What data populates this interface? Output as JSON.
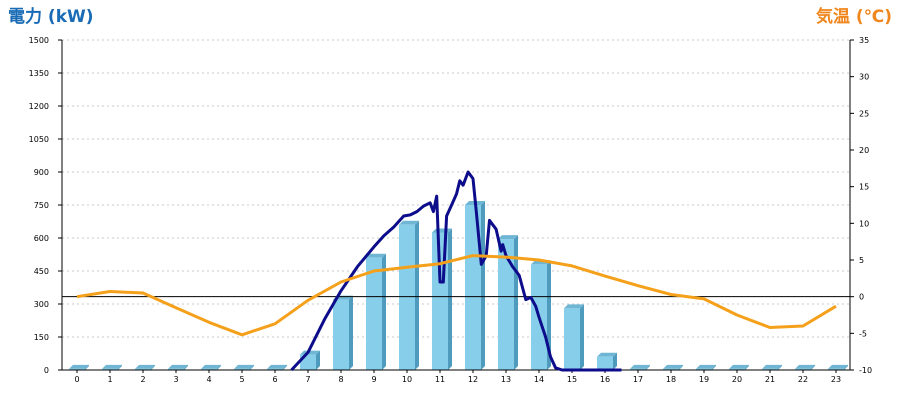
{
  "chart_data": {
    "type": "bar+line",
    "title": "",
    "left_axis": {
      "label": "電力 (kW)",
      "range": [
        0,
        1500
      ],
      "ticks": [
        0,
        150,
        300,
        450,
        600,
        750,
        900,
        1050,
        1200,
        1350,
        1500
      ]
    },
    "right_axis": {
      "label": "気温 (℃)",
      "range": [
        -10,
        35
      ],
      "ticks": [
        -10,
        -5,
        0,
        5,
        10,
        15,
        20,
        25,
        30,
        35
      ]
    },
    "x_ticks": [
      "0",
      "1",
      "2",
      "3",
      "4",
      "5",
      "6",
      "7",
      "8",
      "9",
      "10",
      "11",
      "12",
      "13",
      "14",
      "15",
      "16",
      "17",
      "18",
      "19",
      "20",
      "21",
      "22",
      "23"
    ],
    "grid": true,
    "colors": {
      "bar": "#87ceea",
      "bar_side": "#4f9bbd",
      "bar_top": "#6fb6d4",
      "power_line": "#0d0d8c",
      "temp_line": "#f5a01a",
      "left_title": "#1a6bb5",
      "right_title": "#f0861e"
    },
    "series": [
      {
        "kind": "bar",
        "axis": "left",
        "x": [
          0,
          1,
          2,
          3,
          4,
          5,
          6,
          7,
          8,
          9,
          10,
          11,
          12,
          13,
          14,
          15,
          16,
          17,
          18,
          19,
          20,
          21,
          22,
          23
        ],
        "values": [
          5,
          5,
          5,
          5,
          5,
          5,
          5,
          70,
          320,
          510,
          660,
          625,
          750,
          595,
          480,
          280,
          60,
          5,
          5,
          5,
          5,
          5,
          5,
          5
        ]
      },
      {
        "kind": "line",
        "axis": "left",
        "x": [
          6.5,
          7.0,
          7.5,
          8.0,
          8.5,
          9.0,
          9.3,
          9.6,
          9.9,
          10.1,
          10.3,
          10.5,
          10.7,
          10.8,
          10.9,
          11.0,
          11.1,
          11.2,
          11.35,
          11.5,
          11.6,
          11.7,
          11.85,
          12.0,
          12.1,
          12.25,
          12.4,
          12.5,
          12.6,
          12.7,
          12.85,
          12.9,
          13.0,
          13.2,
          13.4,
          13.6,
          13.75,
          13.9,
          14.0,
          14.2,
          14.35,
          14.5,
          14.7,
          15.0,
          15.5,
          16.0,
          16.2,
          16.5
        ],
        "values": [
          0,
          80,
          230,
          360,
          470,
          560,
          610,
          650,
          700,
          705,
          720,
          745,
          760,
          720,
          790,
          400,
          400,
          700,
          750,
          800,
          860,
          840,
          900,
          870,
          720,
          480,
          520,
          680,
          660,
          640,
          540,
          570,
          520,
          470,
          430,
          320,
          330,
          290,
          240,
          150,
          60,
          10,
          0,
          0,
          0,
          0,
          0,
          0
        ]
      },
      {
        "kind": "line",
        "axis": "right",
        "x": [
          0,
          1,
          2,
          3,
          4,
          5,
          6,
          7,
          8,
          9,
          10,
          11,
          12,
          13,
          14,
          15,
          16,
          17,
          18,
          19,
          20,
          21,
          22,
          23
        ],
        "values": [
          0,
          0.7,
          0.5,
          -1.5,
          -3.5,
          -5.2,
          -3.7,
          -0.5,
          2,
          3.5,
          4,
          4.5,
          5.6,
          5.4,
          5,
          4.2,
          2.8,
          1.5,
          0.3,
          -0.3,
          -2.5,
          -4.2,
          -4,
          -1.3
        ]
      }
    ]
  }
}
